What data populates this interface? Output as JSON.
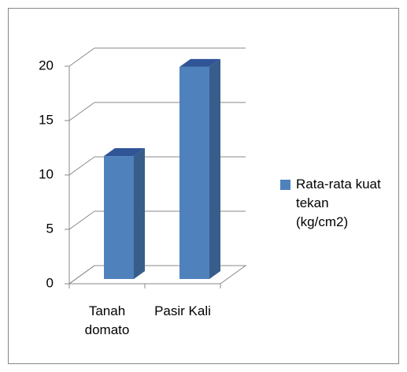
{
  "chart_data": {
    "type": "bar3d",
    "categories": [
      "Tanah domato",
      "Pasir Kali"
    ],
    "series": [
      {
        "name": "Rata-rata kuat tekan (kg/cm2)",
        "color": "#4f81bd",
        "values": [
          11.3,
          19.5
        ]
      }
    ],
    "ylim": [
      0,
      20
    ],
    "yticks": [
      0,
      5,
      10,
      15,
      20
    ],
    "grid": true,
    "legend": "right"
  }
}
